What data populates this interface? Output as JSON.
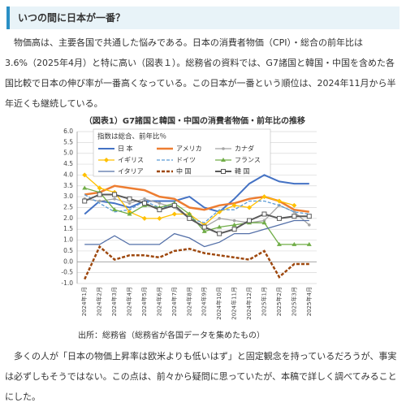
{
  "header": {
    "title": "いつの間に日本が一番？"
  },
  "paragraphs": [
    "物価高は、主要各国で共通した悩みである。日本の消費者物価（CPI）・総合の前年比は3.6%（2025年4月）と特に高い（図表１）。総務省の資料では、G7諸国と韓国・中国を含めた各国比較で日本の伸び率が一番高くなっている。この日本が一番という順位は、2024年11月から半年近くも継続している。",
    "多くの人が「日本の物価上昇率は欧米よりも低いはず」と固定観念を持っているだろうが、事実は必ずしもそうではない。この点は、前々から疑問に思っていたが、本稿で詳しく調べてみることにした。"
  ],
  "source": "出所：総務省（総務省が各国データを集めたもの）",
  "chart_data": {
    "type": "line",
    "title": "（図表1）G7諸国と韓国・中国の消費者物価・前年比の推移",
    "legend_note": "指数は総合、前年比％",
    "categories": [
      "2024年1月",
      "2024年2月",
      "2024年3月",
      "2024年4月",
      "2024年5月",
      "2024年6月",
      "2024年7月",
      "2024年8月",
      "2024年9月",
      "2024年10月",
      "2024年11月",
      "2024年12月",
      "2025年1月",
      "2025年2月",
      "2025年3月",
      "2025年4月"
    ],
    "ylim": [
      -1,
      6
    ],
    "yticks": [
      {
        "value": -1,
        "label": "-1.0"
      },
      {
        "value": -0.5,
        "label": "-0.5"
      },
      {
        "value": 0,
        "label": "0.0"
      },
      {
        "value": 0.5,
        "label": "0.5"
      },
      {
        "value": 1,
        "label": "1.0"
      },
      {
        "value": 1.5,
        "label": "1.5"
      },
      {
        "value": 2,
        "label": "2.0"
      },
      {
        "value": 2.5,
        "label": "2.5"
      },
      {
        "value": 3,
        "label": "3.0"
      },
      {
        "value": 3.5,
        "label": "3.5"
      },
      {
        "value": 4,
        "label": "4.0"
      },
      {
        "value": 4.5,
        "label": "4.5"
      },
      {
        "value": 5,
        "label": "5.0"
      },
      {
        "value": 5.5,
        "label": "5.5"
      },
      {
        "value": 6,
        "label": "6.0"
      }
    ],
    "grid": true,
    "series": [
      {
        "name": "日 本",
        "color": "#4472c4",
        "width": 2,
        "values": [
          2.2,
          2.8,
          2.7,
          2.5,
          2.8,
          2.8,
          2.8,
          3.0,
          2.5,
          2.3,
          2.9,
          3.6,
          4.0,
          3.7,
          3.6,
          3.6
        ]
      },
      {
        "name": "アメリカ",
        "color": "#ed7d31",
        "width": 2.5,
        "values": [
          3.1,
          3.2,
          3.5,
          3.4,
          3.3,
          3.0,
          2.9,
          2.5,
          2.4,
          2.6,
          2.7,
          2.9,
          3.0,
          2.8,
          2.4,
          2.3
        ]
      },
      {
        "name": "カナダ",
        "color": "#a5a5a5",
        "marker": "circle",
        "values": [
          2.9,
          2.8,
          2.9,
          2.7,
          2.9,
          2.7,
          2.5,
          2.0,
          1.6,
          2.0,
          1.9,
          1.8,
          1.9,
          2.6,
          2.3,
          1.7
        ]
      },
      {
        "name": "イギリス",
        "color": "#ffc000",
        "marker": "diamond",
        "values": [
          4.0,
          3.4,
          3.2,
          2.3,
          2.0,
          2.0,
          2.2,
          2.2,
          1.7,
          2.3,
          2.6,
          2.5,
          3.0,
          2.8,
          2.6,
          null
        ]
      },
      {
        "name": "ドイツ",
        "color": "#5b9bd5",
        "dash": true,
        "values": [
          3.1,
          2.7,
          2.3,
          2.4,
          2.8,
          2.5,
          2.6,
          2.0,
          1.8,
          2.4,
          2.4,
          2.8,
          2.8,
          2.6,
          2.3,
          2.2
        ]
      },
      {
        "name": "フランス",
        "color": "#70ad47",
        "marker": "triangle",
        "values": [
          3.4,
          3.2,
          2.4,
          2.2,
          2.6,
          2.5,
          2.7,
          2.2,
          1.4,
          1.6,
          1.7,
          1.8,
          1.8,
          0.8,
          0.8,
          0.8
        ]
      },
      {
        "name": "イタリア",
        "color": "#5470a8",
        "values": [
          0.8,
          0.8,
          1.2,
          0.8,
          0.8,
          0.8,
          1.3,
          1.1,
          0.7,
          0.9,
          1.3,
          1.3,
          1.5,
          1.7,
          1.9,
          1.9
        ]
      },
      {
        "name": "中 国",
        "color": "#9e480e",
        "dash": true,
        "width": 2.5,
        "values": [
          -0.8,
          0.7,
          0.1,
          0.3,
          0.3,
          0.2,
          0.5,
          0.6,
          0.4,
          0.3,
          0.2,
          0.1,
          0.5,
          -0.7,
          -0.1,
          -0.1
        ]
      },
      {
        "name": "韓 国",
        "color": "#595959",
        "marker": "square",
        "width": 2,
        "values": [
          2.8,
          3.1,
          3.1,
          2.9,
          2.7,
          2.4,
          2.6,
          2.0,
          1.6,
          1.3,
          1.5,
          1.9,
          2.2,
          2.0,
          2.1,
          2.1
        ]
      }
    ]
  }
}
